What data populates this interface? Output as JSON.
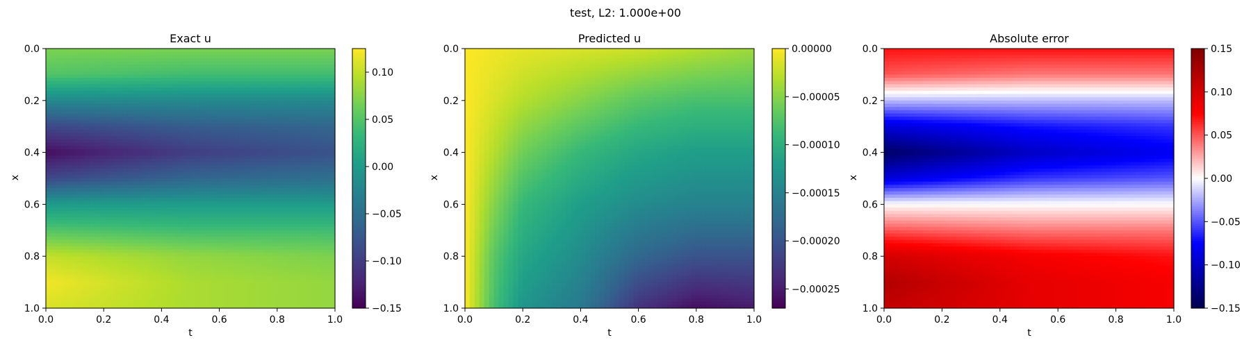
{
  "suptitle": "test, L2: 1.000e+00",
  "chart_data": [
    {
      "type": "heatmap",
      "title": "Exact u",
      "xlabel": "t",
      "ylabel": "x",
      "xlim": [
        0.0,
        1.0
      ],
      "ylim": [
        1.0,
        0.0
      ],
      "x_ticks": [
        "0.0",
        "0.2",
        "0.4",
        "0.6",
        "0.8",
        "1.0"
      ],
      "y_ticks": [
        "0.0",
        "0.2",
        "0.4",
        "0.6",
        "0.8",
        "1.0"
      ],
      "colormap": "viridis",
      "colorbar": {
        "range": [
          -0.15,
          0.125
        ],
        "ticks": [
          0.1,
          0.05,
          0.0,
          -0.05,
          -0.1,
          -0.15
        ],
        "tick_labels": [
          "0.10",
          "0.05",
          "0.00",
          "−0.05",
          "−0.10",
          "−0.15"
        ]
      },
      "t_samples": [
        0.0,
        0.5,
        1.0
      ],
      "x_samples": [
        0.0,
        0.1,
        0.2,
        0.3,
        0.4,
        0.5,
        0.6,
        0.7,
        0.8,
        0.9,
        1.0
      ],
      "values": [
        [
          0.07,
          0.07,
          0.07
        ],
        [
          0.05,
          0.04,
          0.04
        ],
        [
          -0.02,
          -0.02,
          -0.02
        ],
        [
          -0.09,
          -0.07,
          -0.06
        ],
        [
          -0.14,
          -0.1,
          -0.08
        ],
        [
          -0.09,
          -0.06,
          -0.05
        ],
        [
          0.0,
          0.0,
          0.0
        ],
        [
          0.05,
          0.04,
          0.04
        ],
        [
          0.1,
          0.08,
          0.07
        ],
        [
          0.12,
          0.09,
          0.08
        ],
        [
          0.11,
          0.09,
          0.08
        ]
      ]
    },
    {
      "type": "heatmap",
      "title": "Predicted u",
      "xlabel": "t",
      "ylabel": "x",
      "xlim": [
        0.0,
        1.0
      ],
      "ylim": [
        1.0,
        0.0
      ],
      "x_ticks": [
        "0.0",
        "0.2",
        "0.4",
        "0.6",
        "0.8",
        "1.0"
      ],
      "y_ticks": [
        "0.0",
        "0.2",
        "0.4",
        "0.6",
        "0.8",
        "1.0"
      ],
      "colormap": "viridis",
      "colorbar": {
        "range": [
          -0.00027,
          0.0
        ],
        "ticks": [
          0.0,
          -5e-05,
          -0.0001,
          -0.00015,
          -0.0002,
          -0.00025
        ],
        "tick_labels": [
          "0.00000",
          "−0.00005",
          "−0.00010",
          "−0.00015",
          "−0.00020",
          "−0.00025"
        ]
      },
      "t_samples": [
        0.0,
        0.1,
        0.2,
        0.4,
        0.6,
        0.8,
        1.0
      ],
      "x_samples": [
        0.0,
        0.2,
        0.4,
        0.6,
        0.8,
        1.0
      ],
      "values": [
        [
          0.0,
          -5e-06,
          -1e-05,
          -1.5e-05,
          -2e-05,
          -3e-05,
          -4e-05
        ],
        [
          0.0,
          -1.5e-05,
          -3e-05,
          -5e-05,
          -7e-05,
          -8e-05,
          -8e-05
        ],
        [
          0.0,
          -3e-05,
          -6e-05,
          -9e-05,
          -0.00011,
          -0.00012,
          -0.00012
        ],
        [
          0.0,
          -5e-05,
          -9e-05,
          -0.00012,
          -0.00014,
          -0.00015,
          -0.00015
        ],
        [
          0.0,
          -7e-05,
          -0.00011,
          -0.00014,
          -0.00018,
          -0.0002,
          -0.0002
        ],
        [
          0.0,
          -8e-05,
          -0.00013,
          -0.00016,
          -0.00023,
          -0.00026,
          -0.00025
        ]
      ]
    },
    {
      "type": "heatmap",
      "title": "Absolute error",
      "xlabel": "t",
      "ylabel": "x",
      "xlim": [
        0.0,
        1.0
      ],
      "ylim": [
        1.0,
        0.0
      ],
      "x_ticks": [
        "0.0",
        "0.2",
        "0.4",
        "0.6",
        "0.8",
        "1.0"
      ],
      "y_ticks": [
        "0.0",
        "0.2",
        "0.4",
        "0.6",
        "0.8",
        "1.0"
      ],
      "colormap": "seismic",
      "colorbar": {
        "range": [
          -0.15,
          0.15
        ],
        "ticks": [
          0.15,
          0.1,
          0.05,
          0.0,
          -0.05,
          -0.1,
          -0.15
        ],
        "tick_labels": [
          "0.15",
          "0.10",
          "0.05",
          "0.00",
          "−0.05",
          "−0.10",
          "−0.15"
        ]
      },
      "t_samples": [
        0.0,
        0.5,
        1.0
      ],
      "x_samples": [
        0.0,
        0.1,
        0.2,
        0.3,
        0.4,
        0.5,
        0.6,
        0.7,
        0.8,
        0.9,
        1.0
      ],
      "values": [
        [
          0.07,
          0.07,
          0.07
        ],
        [
          0.05,
          0.04,
          0.04
        ],
        [
          -0.02,
          -0.02,
          -0.02
        ],
        [
          -0.09,
          -0.07,
          -0.06
        ],
        [
          -0.14,
          -0.1,
          -0.08
        ],
        [
          -0.09,
          -0.06,
          -0.05
        ],
        [
          0.0,
          0.0,
          0.0
        ],
        [
          0.05,
          0.04,
          0.04
        ],
        [
          0.1,
          0.08,
          0.07
        ],
        [
          0.12,
          0.09,
          0.08
        ],
        [
          0.11,
          0.09,
          0.08
        ]
      ]
    }
  ]
}
